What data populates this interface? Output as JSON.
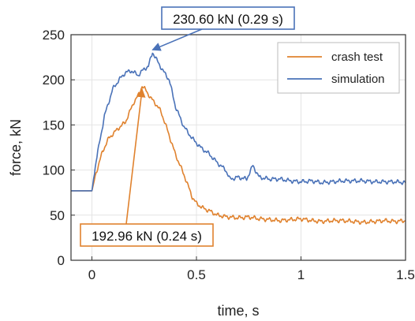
{
  "chart_data": {
    "type": "line",
    "title": "",
    "xlabel": "time, s",
    "ylabel": "force, kN",
    "xlim": [
      -0.1,
      1.5
    ],
    "ylim": [
      0,
      250
    ],
    "xticks": [
      0,
      0.5,
      1,
      1.5
    ],
    "xtick_labels": [
      "0",
      "0.5",
      "1",
      "1.5"
    ],
    "yticks": [
      0,
      50,
      100,
      150,
      200,
      250
    ],
    "ytick_labels": [
      "0",
      "50",
      "100",
      "150",
      "200",
      "250"
    ],
    "grid": true,
    "legend_position": "top-right",
    "series": [
      {
        "name": "crash test",
        "color": "#e0822e",
        "x": [
          -0.1,
          -0.05,
          0,
          0.02,
          0.05,
          0.08,
          0.1,
          0.13,
          0.16,
          0.2,
          0.22,
          0.24,
          0.26,
          0.28,
          0.3,
          0.33,
          0.36,
          0.4,
          0.44,
          0.48,
          0.5,
          0.53,
          0.56,
          0.6,
          0.65,
          0.7,
          0.75,
          0.8,
          0.85,
          0.9,
          0.95,
          1.0,
          1.05,
          1.1,
          1.15,
          1.2,
          1.25,
          1.3,
          1.35,
          1.4,
          1.45,
          1.5
        ],
        "y": [
          77,
          77,
          77,
          97,
          120,
          135,
          140,
          147,
          153,
          175,
          182,
          192.96,
          188,
          180,
          175,
          165,
          145,
          117,
          95,
          70,
          63,
          58,
          55,
          50,
          48,
          47,
          48,
          46,
          45,
          44,
          45,
          46,
          44,
          43,
          44,
          44,
          43,
          42,
          43,
          44,
          43,
          44
        ]
      },
      {
        "name": "simulation",
        "color": "#4a72b8",
        "x": [
          -0.1,
          -0.05,
          0,
          0.02,
          0.04,
          0.06,
          0.08,
          0.1,
          0.13,
          0.16,
          0.19,
          0.22,
          0.25,
          0.27,
          0.29,
          0.31,
          0.34,
          0.37,
          0.4,
          0.44,
          0.48,
          0.52,
          0.56,
          0.6,
          0.64,
          0.66,
          0.7,
          0.74,
          0.77,
          0.8,
          0.85,
          0.9,
          0.95,
          1.0,
          1.05,
          1.1,
          1.15,
          1.2,
          1.25,
          1.3,
          1.35,
          1.4,
          1.45,
          1.5
        ],
        "y": [
          77,
          77,
          77,
          110,
          135,
          160,
          175,
          190,
          200,
          208,
          210,
          205,
          212,
          215,
          230.6,
          222,
          210,
          200,
          170,
          148,
          135,
          125,
          118,
          108,
          100,
          90,
          92,
          90,
          105,
          92,
          90,
          90,
          88,
          87,
          88,
          86,
          87,
          88,
          88,
          88,
          87,
          87,
          87,
          86
        ]
      }
    ],
    "annotations": [
      {
        "text": "230.60 kN (0.29 s)",
        "x": 0.29,
        "y": 230.6,
        "color": "#4a72b8"
      },
      {
        "text": "192.96 kN (0.24 s)",
        "x": 0.24,
        "y": 192.96,
        "color": "#e0822e"
      }
    ]
  }
}
